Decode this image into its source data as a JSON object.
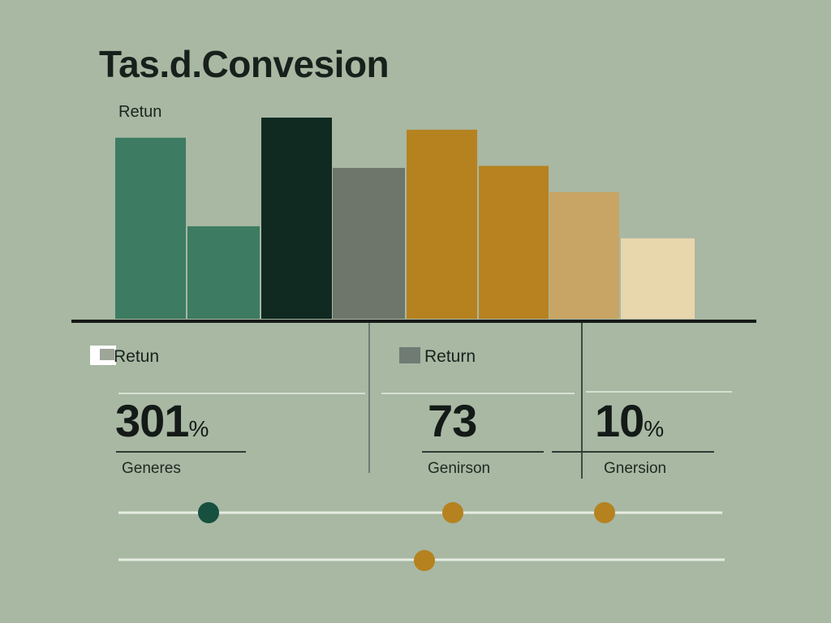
{
  "chart_data": {
    "type": "bar",
    "title": "Tas.d.Convesion",
    "ylabel": "Retun",
    "xlabel": "",
    "ylim": [
      0,
      100
    ],
    "grid": false,
    "legend": "none",
    "values": [
      90,
      46,
      100,
      75,
      94,
      76,
      63,
      40
    ],
    "colors": [
      "#3d7b62",
      "#3d7b62",
      "#102a22",
      "#6e756a",
      "#b5821f",
      "#b7821f",
      "#c8a564",
      "#e8d6ad"
    ]
  },
  "legend_items": [
    {
      "label": "Retun",
      "color": "#ffffff"
    },
    {
      "label": "Return",
      "color": "#6f7b73"
    }
  ],
  "stats": [
    {
      "value": "301",
      "unit": "%",
      "label": "Generes"
    },
    {
      "value": "73",
      "unit": "",
      "label": "Genirson"
    },
    {
      "value": "10",
      "unit": "%",
      "label": "Gnersion"
    }
  ],
  "dot_colors": [
    "#17503f",
    "#b5821f",
    "#b5821f",
    "#b5821f"
  ]
}
